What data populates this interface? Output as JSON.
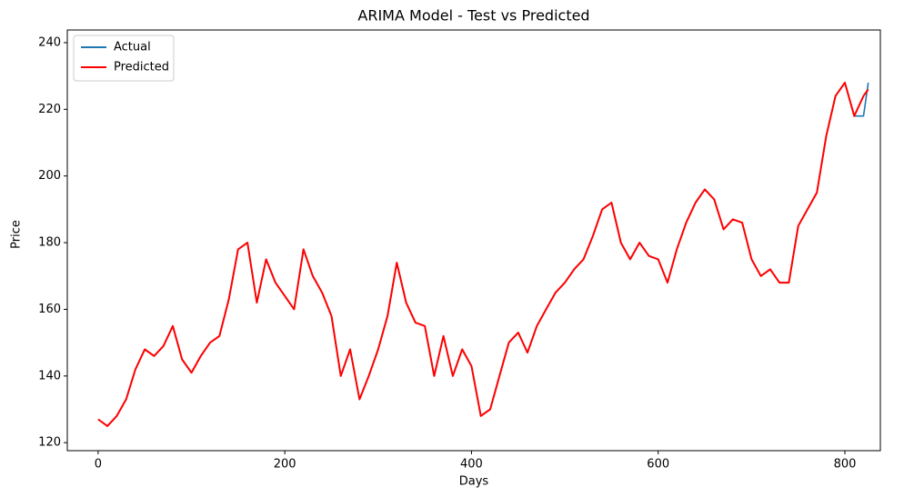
{
  "chart_data": {
    "type": "line",
    "title": "ARIMA Model - Test vs Predicted",
    "x_label": "Days",
    "y_label": "Price",
    "x": [
      0,
      10,
      20,
      30,
      40,
      50,
      60,
      70,
      80,
      90,
      100,
      110,
      120,
      130,
      140,
      150,
      160,
      170,
      180,
      190,
      200,
      210,
      220,
      230,
      240,
      250,
      260,
      270,
      280,
      290,
      300,
      310,
      320,
      330,
      340,
      350,
      360,
      370,
      380,
      390,
      400,
      410,
      420,
      430,
      440,
      450,
      460,
      470,
      480,
      490,
      500,
      510,
      520,
      530,
      540,
      550,
      560,
      570,
      580,
      590,
      600,
      610,
      620,
      630,
      640,
      650,
      660,
      670,
      680,
      690,
      700,
      710,
      720,
      730,
      740,
      750,
      760,
      770,
      780,
      790,
      800,
      810,
      820,
      825
    ],
    "series": [
      {
        "name": "Actual",
        "color": "#1f77b4",
        "values": [
          127,
          125,
          128,
          133,
          142,
          148,
          146,
          149,
          155,
          145,
          141,
          146,
          150,
          152,
          163,
          178,
          180,
          162,
          175,
          168,
          164,
          160,
          178,
          170,
          165,
          158,
          140,
          148,
          133,
          140,
          148,
          158,
          174,
          162,
          156,
          155,
          140,
          152,
          140,
          148,
          143,
          128,
          130,
          140,
          150,
          153,
          147,
          155,
          160,
          165,
          168,
          172,
          175,
          182,
          190,
          192,
          180,
          175,
          180,
          176,
          175,
          168,
          178,
          186,
          192,
          196,
          193,
          184,
          187,
          186,
          175,
          170,
          172,
          168,
          168,
          185,
          190,
          195,
          212,
          224,
          228,
          218,
          218,
          228
        ]
      },
      {
        "name": "Predicted",
        "color": "#ff0000",
        "values": [
          127,
          125,
          128,
          133,
          142,
          148,
          146,
          149,
          155,
          145,
          141,
          146,
          150,
          152,
          163,
          178,
          180,
          162,
          175,
          168,
          164,
          160,
          178,
          170,
          165,
          158,
          140,
          148,
          133,
          140,
          148,
          158,
          174,
          162,
          156,
          155,
          140,
          152,
          140,
          148,
          143,
          128,
          130,
          140,
          150,
          153,
          147,
          155,
          160,
          165,
          168,
          172,
          175,
          182,
          190,
          192,
          180,
          175,
          180,
          176,
          175,
          168,
          178,
          186,
          192,
          196,
          193,
          184,
          187,
          186,
          175,
          170,
          172,
          168,
          168,
          185,
          190,
          195,
          212,
          224,
          228,
          218,
          224,
          226
        ]
      }
    ],
    "xlim": [
      -33,
      838
    ],
    "ylim": [
      117.6,
      243.8
    ],
    "xticks": [
      0,
      200,
      400,
      600,
      800
    ],
    "yticks": [
      120,
      140,
      160,
      180,
      200,
      220,
      240
    ],
    "legend": "upper left"
  }
}
